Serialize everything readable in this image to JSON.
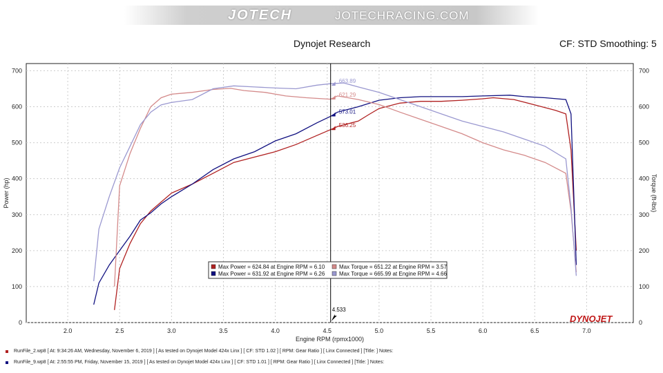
{
  "header": {
    "brand": "JOTECH",
    "brand_url": "JOTECHRACING.COM",
    "title": "Dynojet Research",
    "settings": "CF: STD Smoothing: 5"
  },
  "logo_text": "DYNOJET",
  "colors": {
    "run1": "#b02020",
    "run1_light": "#d48a8a",
    "run2": "#101080",
    "run2_light": "#9a98d0"
  },
  "chart_data": {
    "type": "line",
    "xlabel": "Engine RPM (rpmx1000)",
    "ylabel": "Power (hp)",
    "y2label": "Torque (ft-lbs)",
    "xlim": [
      1.6,
      7.45
    ],
    "ylim": [
      0,
      720
    ],
    "xticks": [
      "2.0",
      "2.5",
      "3.0",
      "3.5",
      "4.0",
      "4.5",
      "5.0",
      "5.5",
      "6.0",
      "6.5",
      "7.0"
    ],
    "yticks": [
      "0",
      "100",
      "200",
      "300",
      "400",
      "500",
      "600",
      "700"
    ],
    "cursor": {
      "x": 4.533,
      "label": "4.533"
    },
    "cursor_labels": [
      {
        "series": "torque-run2",
        "value": "663.89",
        "y": 664
      },
      {
        "series": "torque-run1",
        "value": "621.29",
        "y": 626
      },
      {
        "series": "power-run2",
        "value": "573.01",
        "y": 579
      },
      {
        "series": "power-run1",
        "value": "536.25",
        "y": 541
      }
    ],
    "legend": [
      "Max Power = 624.84 at Engine RPM = 6.10",
      "Max Power = 631.92 at Engine RPM = 6.26",
      "Max Torque = 651.22 at Engine RPM = 3.57",
      "Max Torque = 665.99 at Engine RPM = 4.66"
    ],
    "series": [
      {
        "name": "power-run1",
        "x": [
          2.45,
          2.5,
          2.6,
          2.7,
          2.8,
          2.9,
          3.0,
          3.2,
          3.4,
          3.6,
          3.8,
          4.0,
          4.2,
          4.4,
          4.53,
          4.6,
          4.8,
          4.9,
          5.0,
          5.2,
          5.4,
          5.6,
          5.8,
          6.0,
          6.1,
          6.3,
          6.5,
          6.7,
          6.8,
          6.85,
          6.9
        ],
        "y": [
          35,
          150,
          220,
          275,
          310,
          335,
          360,
          385,
          415,
          445,
          460,
          475,
          495,
          520,
          536,
          545,
          560,
          578,
          595,
          610,
          615,
          615,
          618,
          622,
          625,
          620,
          605,
          590,
          580,
          480,
          200
        ]
      },
      {
        "name": "power-run2",
        "x": [
          2.25,
          2.3,
          2.4,
          2.5,
          2.6,
          2.7,
          2.8,
          2.9,
          3.0,
          3.2,
          3.4,
          3.6,
          3.8,
          4.0,
          4.2,
          4.4,
          4.53,
          4.6,
          4.8,
          5.0,
          5.2,
          5.4,
          5.6,
          5.8,
          6.0,
          6.26,
          6.4,
          6.6,
          6.8,
          6.85,
          6.9
        ],
        "y": [
          50,
          110,
          160,
          200,
          240,
          285,
          305,
          330,
          350,
          385,
          425,
          455,
          475,
          505,
          525,
          555,
          573,
          585,
          600,
          618,
          625,
          628,
          628,
          628,
          630,
          632,
          628,
          625,
          620,
          580,
          160
        ]
      },
      {
        "name": "torque-run1",
        "x": [
          2.45,
          2.5,
          2.6,
          2.7,
          2.8,
          2.9,
          3.0,
          3.2,
          3.4,
          3.57,
          3.7,
          3.9,
          4.1,
          4.3,
          4.53,
          4.6,
          4.8,
          5.0,
          5.2,
          5.4,
          5.6,
          5.8,
          6.0,
          6.2,
          6.4,
          6.6,
          6.8,
          6.85,
          6.9
        ],
        "y": [
          100,
          380,
          470,
          540,
          600,
          625,
          635,
          640,
          648,
          651,
          645,
          640,
          630,
          625,
          621,
          630,
          620,
          606,
          585,
          565,
          545,
          525,
          500,
          480,
          465,
          445,
          415,
          310,
          140
        ]
      },
      {
        "name": "torque-run2",
        "x": [
          2.25,
          2.3,
          2.4,
          2.5,
          2.6,
          2.7,
          2.8,
          2.9,
          3.0,
          3.2,
          3.4,
          3.6,
          3.8,
          4.0,
          4.2,
          4.4,
          4.53,
          4.66,
          4.8,
          5.0,
          5.2,
          5.4,
          5.6,
          5.8,
          6.0,
          6.2,
          6.4,
          6.6,
          6.8,
          6.85,
          6.9
        ],
        "y": [
          115,
          260,
          350,
          430,
          490,
          550,
          585,
          605,
          612,
          620,
          650,
          658,
          655,
          652,
          650,
          660,
          664,
          666,
          655,
          640,
          620,
          600,
          580,
          560,
          545,
          530,
          510,
          490,
          455,
          320,
          130
        ]
      }
    ]
  },
  "runs": [
    {
      "text": "RunFile_2.wp8  [ At:  9:34:26 AM, Wednesday, November 6, 2019 ]  [ As tested on Dynojet Model 424x Linx ]  [ CF:  STD 1.02 ]  [ RPM:  Gear Ratio ]  [ Linx Connected ]  [Title:  ]   Notes:"
    },
    {
      "text": "RunFile_9.wp8  [ At:  2:55:55 PM, Friday, November 15, 2019 ]  [ As tested on Dynojet Model 424x Linx ]  [ CF:  STD 1.01 ]  [ RPM:  Gear Ratio ]  [ Linx Connected ]  [Title:  ]   Notes:"
    }
  ]
}
